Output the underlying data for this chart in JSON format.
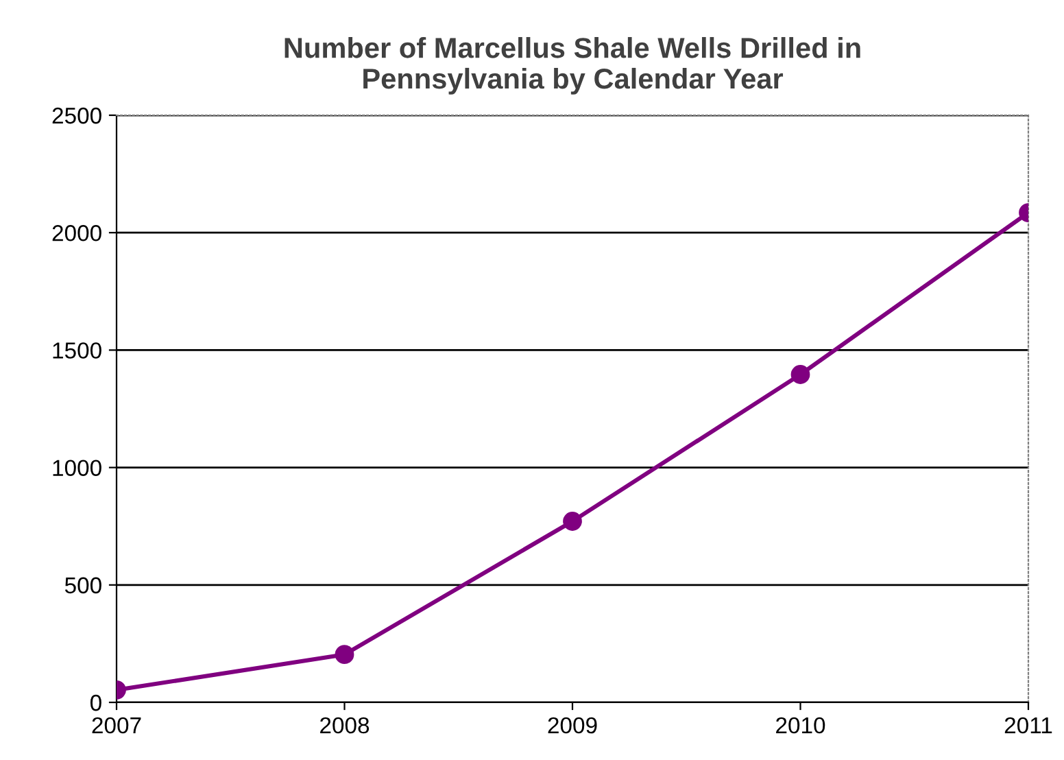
{
  "chart_data": {
    "type": "line",
    "title": "Number of Marcellus Shale Wells Drilled in\nPennsylvania by Calendar Year",
    "x": [
      2007,
      2008,
      2009,
      2010,
      2011
    ],
    "series": [
      {
        "color": "#800080",
        "values": [
          53,
          204,
          771,
          1396,
          2085
        ]
      }
    ],
    "xlim": [
      2007,
      2011
    ],
    "xticks": [
      2007,
      2008,
      2009,
      2010,
      2011
    ],
    "ylim": [
      0,
      2500
    ],
    "yticks": [
      0,
      500,
      1000,
      1500,
      2000,
      2500
    ],
    "grid": "y",
    "marker": "circle",
    "line_style": "solid"
  }
}
